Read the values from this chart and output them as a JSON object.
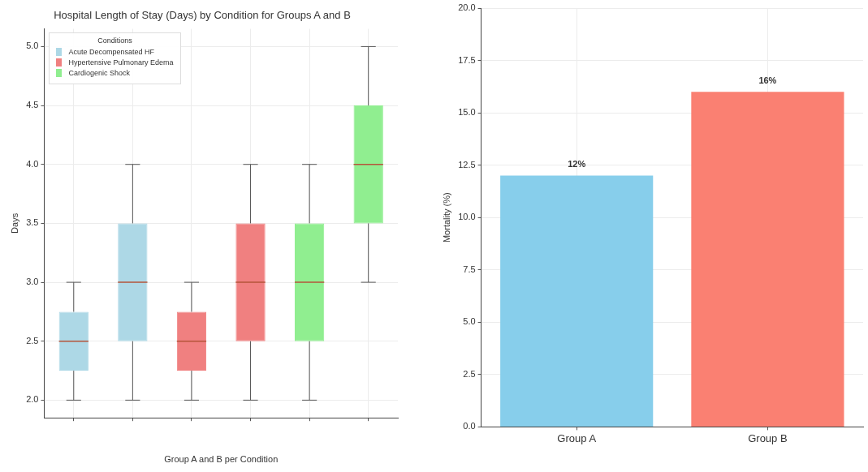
{
  "chart_data": [
    {
      "type": "box",
      "title": "Hospital Length of Stay (Days) by Condition for Groups A and B",
      "xlabel": "Group A and B per Condition",
      "ylabel": "Days",
      "legend_title": "Conditions",
      "categories": [
        null,
        null,
        null,
        null,
        null,
        null
      ],
      "series": [
        {
          "name": "Acute Decompensated HF",
          "color": "#add8e6",
          "boxes": [
            {
              "low": 2.0,
              "q1": 2.25,
              "median": 2.5,
              "q3": 2.75,
              "high": 3.0
            },
            {
              "low": 2.0,
              "q1": 2.5,
              "median": 3.0,
              "q3": 3.5,
              "high": 4.0
            },
            null,
            null,
            null,
            null
          ]
        },
        {
          "name": "Hypertensive Pulmonary Edema",
          "color": "#f08080",
          "boxes": [
            null,
            null,
            {
              "low": 2.0,
              "q1": 2.25,
              "median": 2.5,
              "q3": 2.75,
              "high": 3.0
            },
            {
              "low": 2.0,
              "q1": 2.5,
              "median": 3.0,
              "q3": 3.5,
              "high": 4.0
            },
            null,
            null
          ]
        },
        {
          "name": "Cardiogenic Shock",
          "color": "#90ee90",
          "boxes": [
            null,
            null,
            null,
            null,
            {
              "low": 2.0,
              "q1": 2.5,
              "median": 3.0,
              "q3": 3.5,
              "high": 4.0
            },
            {
              "low": 3.0,
              "q1": 3.5,
              "median": 4.0,
              "q3": 4.5,
              "high": 5.0
            }
          ]
        }
      ],
      "ylim": [
        1.85,
        5.15
      ],
      "yticks": [
        {
          "value": 2,
          "label": "2.0"
        },
        2.5,
        {
          "value": 3,
          "label": "3.0"
        },
        3.5,
        {
          "value": 4,
          "label": "4.0"
        },
        4.5,
        {
          "value": 5,
          "label": "5.0"
        }
      ],
      "grid": true,
      "legend": "top left"
    },
    {
      "type": "bar",
      "ylabel": "Mortality (%)",
      "categories": [
        "Group A",
        "Group B"
      ],
      "values": [
        12,
        16
      ],
      "colors": [
        "#87ceeb",
        "#fa8072"
      ],
      "value_labels": [
        "12%",
        "16%"
      ],
      "ylim": [
        0,
        20
      ],
      "yticks": [
        {
          "value": 0,
          "label": "0.0"
        },
        2.5,
        {
          "value": 5,
          "label": "5.0"
        },
        7.5,
        {
          "value": 10,
          "label": "10.0"
        },
        12.5,
        {
          "value": 15,
          "label": "15.0"
        },
        17.5,
        {
          "value": 20,
          "label": "20.0"
        }
      ],
      "grid": true
    }
  ]
}
